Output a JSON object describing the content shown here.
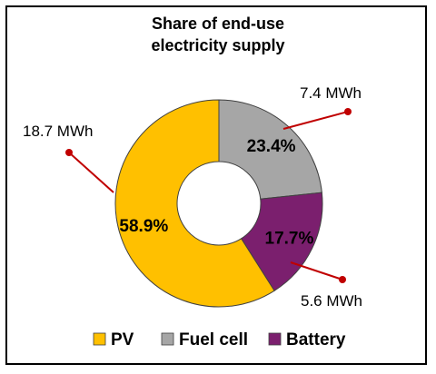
{
  "chart_data": {
    "type": "pie",
    "variant": "donut",
    "title": "Share of end-use electricity supply",
    "title_lines": [
      "Share of end-use",
      "electricity supply"
    ],
    "categories": [
      "PV",
      "Fuel cell",
      "Battery"
    ],
    "values": [
      18.7,
      7.4,
      5.6
    ],
    "value_labels": [
      "18.7 MWh",
      "7.4 MWh",
      "5.6 MWh"
    ],
    "percent_labels": [
      "58.9%",
      "23.4%",
      "17.7%"
    ],
    "colors": [
      "#FFC000",
      "#A6A6A6",
      "#7B1F6E"
    ],
    "leader_color": "#C00000",
    "legend_position": "bottom"
  }
}
